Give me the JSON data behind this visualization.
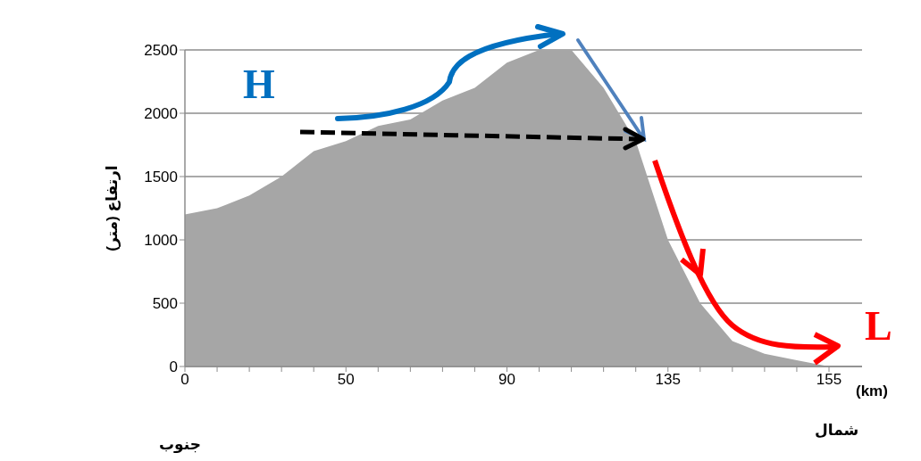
{
  "chart_data": {
    "type": "area",
    "ylabel": "ارتفاع (متر)",
    "categories": [
      "0",
      null,
      null,
      null,
      null,
      "50",
      null,
      null,
      null,
      null,
      "90",
      null,
      null,
      null,
      null,
      "135",
      null,
      null,
      null,
      null,
      "155"
    ],
    "values": [
      1200,
      1250,
      1350,
      1500,
      1700,
      1780,
      1900,
      1950,
      2100,
      2200,
      2400,
      2500,
      2500,
      2200,
      1780,
      1000,
      500,
      200,
      100,
      50,
      0
    ],
    "color": "#a6a6a6",
    "ylim": [
      0,
      2500
    ],
    "yticks": [
      0,
      500,
      1000,
      1500,
      2000,
      2500
    ],
    "grid": "y",
    "annotations": [
      "H",
      "L",
      "(km)",
      "شمال",
      "جنوب"
    ]
  }
}
